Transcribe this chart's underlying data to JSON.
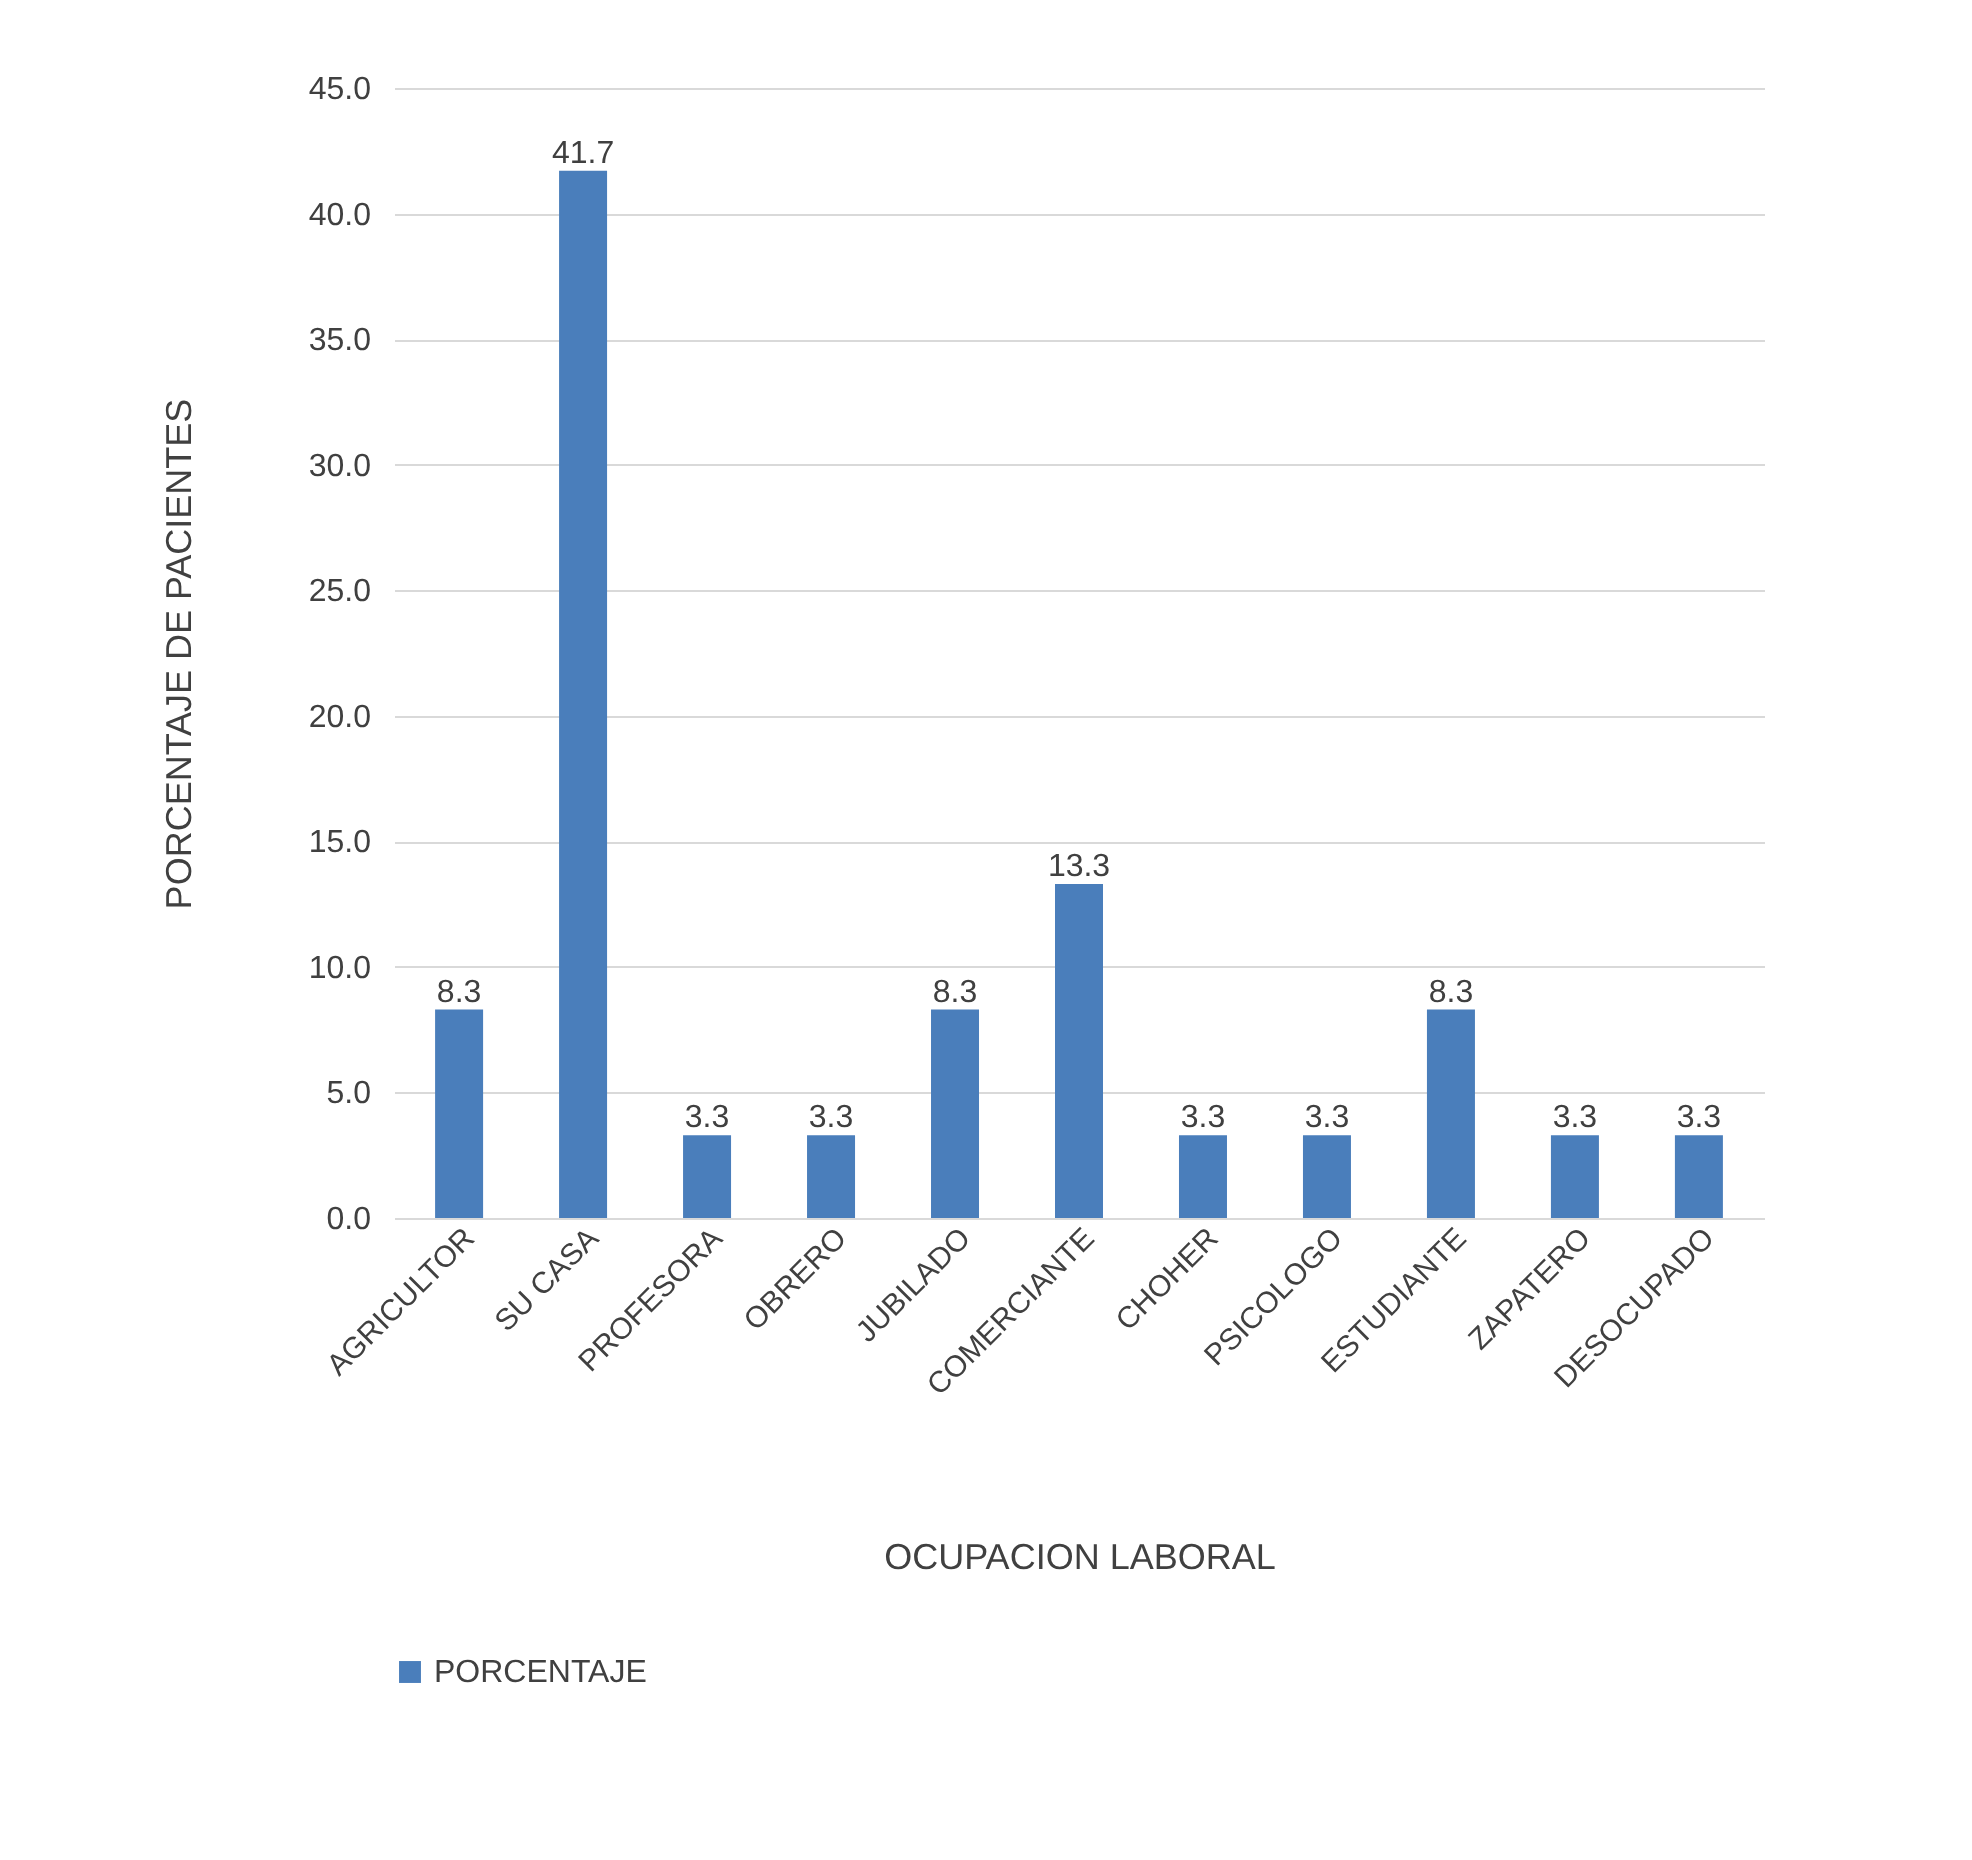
{
  "chart_data": {
    "type": "bar",
    "xlabel": "OCUPACION  LABORAL",
    "ylabel": "PORCENTAJE  DE  PACIENTES",
    "categories": [
      "AGRICULTOR",
      "SU CASA",
      "PROFESORA",
      "OBRERO",
      "JUBILADO",
      "COMERCIANTE",
      "CHOHER",
      "PSICOLOGO",
      "ESTUDIANTE",
      "ZAPATERO",
      "DESOCUPADO"
    ],
    "series": [
      {
        "name": "PORCENTAJE",
        "color": "#4a7ebb",
        "values": [
          8.3,
          41.7,
          3.3,
          3.3,
          8.3,
          13.3,
          3.3,
          3.3,
          8.3,
          3.3,
          3.3
        ]
      }
    ],
    "ylim": [
      0,
      45
    ],
    "yticks": [
      {
        "value": 0,
        "label": "0.0"
      },
      {
        "value": 5,
        "label": "5.0"
      },
      {
        "value": 10,
        "label": "10.0"
      },
      {
        "value": 15,
        "label": "15.0"
      },
      {
        "value": 20,
        "label": "20.0"
      },
      {
        "value": 25,
        "label": "25.0"
      },
      {
        "value": 30,
        "label": "30.0"
      },
      {
        "value": 35,
        "label": "35.0"
      },
      {
        "value": 40,
        "label": "40.0"
      },
      {
        "value": 45,
        "label": "45.0"
      }
    ],
    "grid": "y",
    "data_labels": true,
    "legend": "bottom"
  }
}
